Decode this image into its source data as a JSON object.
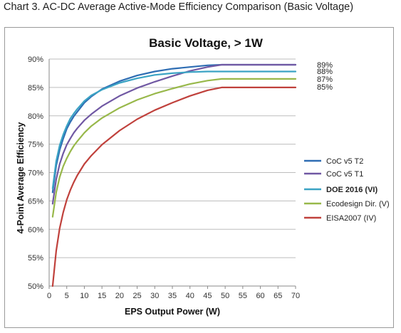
{
  "caption": "Chart 3. AC-DC Average Active-Mode Efficiency Comparison (Basic Voltage)",
  "chart_data": {
    "type": "line",
    "title": "Basic Voltage, > 1W",
    "xlabel": "EPS Output Power (W)",
    "ylabel": "4-Point Average Efficiency",
    "xlim": [
      0,
      70
    ],
    "ylim": [
      50,
      90
    ],
    "x_ticks": [
      "0",
      "5",
      "10",
      "15",
      "20",
      "25",
      "30",
      "35",
      "40",
      "45",
      "50",
      "55",
      "60",
      "65",
      "70"
    ],
    "y_ticks": [
      "50%",
      "55%",
      "60%",
      "65%",
      "70%",
      "75%",
      "80%",
      "85%",
      "90%"
    ],
    "grid": "horizontal",
    "legend_position": "right",
    "end_labels": [
      "89%",
      "88%",
      "87%",
      "85%"
    ],
    "series": [
      {
        "name": "CoC v5 T2",
        "color": "#2e6db3",
        "bold": false,
        "x": [
          1,
          2,
          3,
          4,
          5,
          6,
          7,
          8,
          10,
          12,
          15,
          20,
          25,
          30,
          35,
          40,
          45,
          49,
          70
        ],
        "y": [
          66.5,
          71.2,
          74.0,
          76.0,
          77.7,
          78.9,
          79.9,
          80.7,
          82.3,
          83.4,
          84.7,
          86.1,
          87.1,
          87.8,
          88.3,
          88.6,
          88.9,
          89.0,
          89.0
        ]
      },
      {
        "name": "CoC v5 T1",
        "color": "#7058a3",
        "bold": false,
        "x": [
          1,
          2,
          3,
          4,
          5,
          6,
          7,
          8,
          10,
          12,
          15,
          20,
          25,
          30,
          35,
          40,
          45,
          49,
          70
        ],
        "y": [
          64.5,
          68.8,
          71.5,
          73.4,
          74.9,
          76.0,
          77.0,
          77.8,
          79.2,
          80.3,
          81.7,
          83.5,
          84.9,
          86.0,
          87.0,
          87.9,
          88.6,
          89.0,
          89.0
        ]
      },
      {
        "name": "DOE 2016 (VI)",
        "color": "#3ba3c4",
        "bold": true,
        "x": [
          1,
          2,
          3,
          4,
          5,
          6,
          7,
          8,
          10,
          12,
          15,
          20,
          25,
          30,
          35,
          40,
          45,
          49,
          70
        ],
        "y": [
          67.2,
          72.0,
          74.8,
          76.7,
          78.2,
          79.5,
          80.4,
          81.2,
          82.6,
          83.6,
          84.6,
          85.8,
          86.6,
          87.2,
          87.5,
          87.7,
          87.8,
          87.8,
          87.8
        ]
      },
      {
        "name": "Ecodesign Dir. (V)",
        "color": "#98b84a",
        "bold": false,
        "x": [
          1,
          2,
          3,
          4,
          5,
          6,
          7,
          8,
          10,
          12,
          15,
          20,
          25,
          30,
          35,
          40,
          45,
          49,
          70
        ],
        "y": [
          62.2,
          66.5,
          69.2,
          71.1,
          72.5,
          73.7,
          74.7,
          75.5,
          77.0,
          78.2,
          79.6,
          81.4,
          82.8,
          83.9,
          84.8,
          85.6,
          86.2,
          86.5,
          86.5
        ]
      },
      {
        "name": "EISA2007 (IV)",
        "color": "#c0413c",
        "bold": false,
        "x": [
          1,
          2,
          3,
          4,
          5,
          6,
          7,
          8,
          10,
          12,
          15,
          20,
          25,
          30,
          35,
          40,
          45,
          49,
          70
        ],
        "y": [
          50.0,
          56.2,
          60.2,
          63.0,
          65.2,
          66.9,
          68.3,
          69.5,
          71.5,
          73.0,
          74.9,
          77.4,
          79.4,
          81.0,
          82.3,
          83.5,
          84.5,
          85.0,
          85.0
        ]
      }
    ]
  }
}
